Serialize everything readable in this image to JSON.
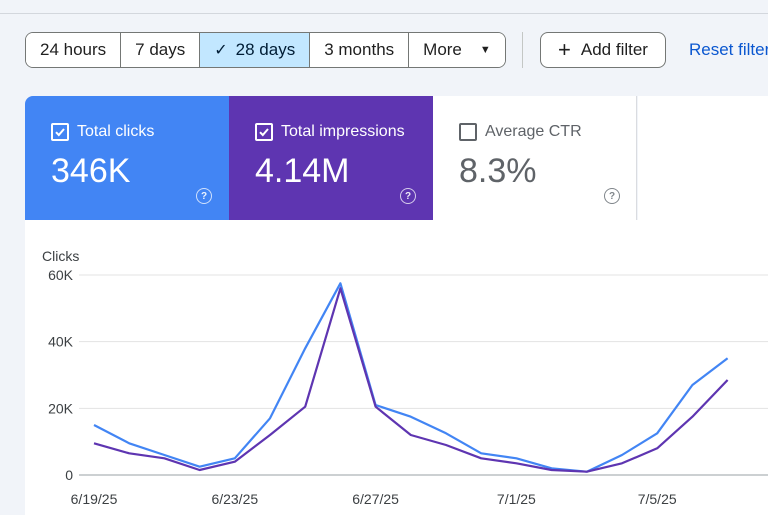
{
  "toolbar": {
    "ranges": [
      {
        "label": "24 hours",
        "selected": false
      },
      {
        "label": "7 days",
        "selected": false
      },
      {
        "label": "28 days",
        "selected": true
      },
      {
        "label": "3 months",
        "selected": false
      },
      {
        "label": "More",
        "selected": false
      }
    ],
    "add_filter_label": "Add filter",
    "reset_label": "Reset filter"
  },
  "metrics": [
    {
      "label": "Total clicks",
      "value": "346K",
      "checked": true,
      "color": "#4285f4"
    },
    {
      "label": "Total impressions",
      "value": "4.14M",
      "checked": true,
      "color": "#5e35b1"
    },
    {
      "label": "Average CTR",
      "value": "8.3%",
      "checked": false,
      "color": "#ffffff"
    }
  ],
  "chart_data": {
    "type": "line",
    "ylabel": "Clicks",
    "ylim": [
      0,
      60000
    ],
    "yticks": [
      0,
      20000,
      40000,
      60000
    ],
    "ytick_labels": [
      "0",
      "20K",
      "40K",
      "60K"
    ],
    "x": [
      "6/19/25",
      "6/20/25",
      "6/21/25",
      "6/22/25",
      "6/23/25",
      "6/24/25",
      "6/25/25",
      "6/26/25",
      "6/27/25",
      "6/28/25",
      "6/29/25",
      "6/30/25",
      "7/1/25",
      "7/2/25",
      "7/3/25",
      "7/4/25",
      "7/5/25",
      "7/6/25",
      "7/7/25"
    ],
    "xtick_labels": [
      "6/19/25",
      "6/23/25",
      "6/27/25",
      "7/1/25",
      "7/5/25"
    ],
    "xtick_indices": [
      0,
      4,
      8,
      12,
      16
    ],
    "grid": true,
    "series": [
      {
        "color": "#4285f4",
        "values": [
          15000,
          9500,
          6000,
          2500,
          5000,
          17000,
          38000,
          57500,
          21000,
          17500,
          12500,
          6500,
          5000,
          2000,
          1000,
          6000,
          12500,
          27000,
          35000
        ]
      },
      {
        "color": "#5e35b1",
        "values": [
          9500,
          6500,
          5000,
          1500,
          4000,
          12000,
          20500,
          56000,
          20500,
          12000,
          9000,
          5000,
          3500,
          1500,
          1000,
          3500,
          8000,
          17500,
          28500
        ]
      }
    ]
  }
}
